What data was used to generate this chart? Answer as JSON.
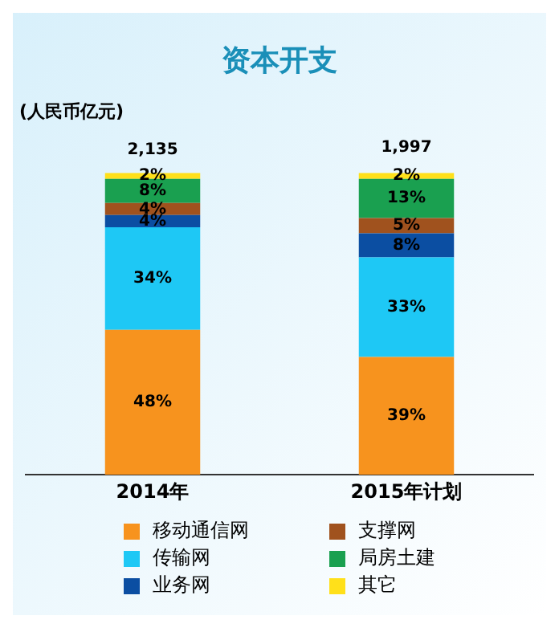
{
  "chart_data": {
    "type": "bar",
    "title": "资本开支",
    "ylabel": "(人民币亿元)",
    "categories": [
      "2014年",
      "2015年计划"
    ],
    "stacked": true,
    "legend": "bottom",
    "grid": false,
    "series": [
      {
        "name": "移动通信网",
        "color": "#f7931e",
        "values": [
          48,
          39
        ],
        "value_labels": [
          "48%",
          "39%"
        ]
      },
      {
        "name": "传输网",
        "color": "#1ec8f5",
        "values": [
          34,
          33
        ],
        "value_labels": [
          "34%",
          "33%"
        ]
      },
      {
        "name": "业务网",
        "color": "#0b4ea2",
        "values": [
          4,
          8
        ],
        "value_labels": [
          "4%",
          "8%"
        ]
      },
      {
        "name": "支撑网",
        "color": "#a0521e",
        "values": [
          4,
          5
        ],
        "value_labels": [
          "4%",
          "5%"
        ]
      },
      {
        "name": "局房土建",
        "color": "#1aa050",
        "values": [
          8,
          13
        ],
        "value_labels": [
          "8%",
          "13%"
        ]
      },
      {
        "name": "其它",
        "color": "#ffe01a",
        "values": [
          2,
          2
        ],
        "value_labels": [
          "2%",
          "2%"
        ]
      }
    ],
    "annotations": [
      {
        "text": "2,135",
        "x": "2014年",
        "y": 100
      },
      {
        "text": "1,997",
        "x": "2015年计划",
        "y": 101
      }
    ]
  }
}
